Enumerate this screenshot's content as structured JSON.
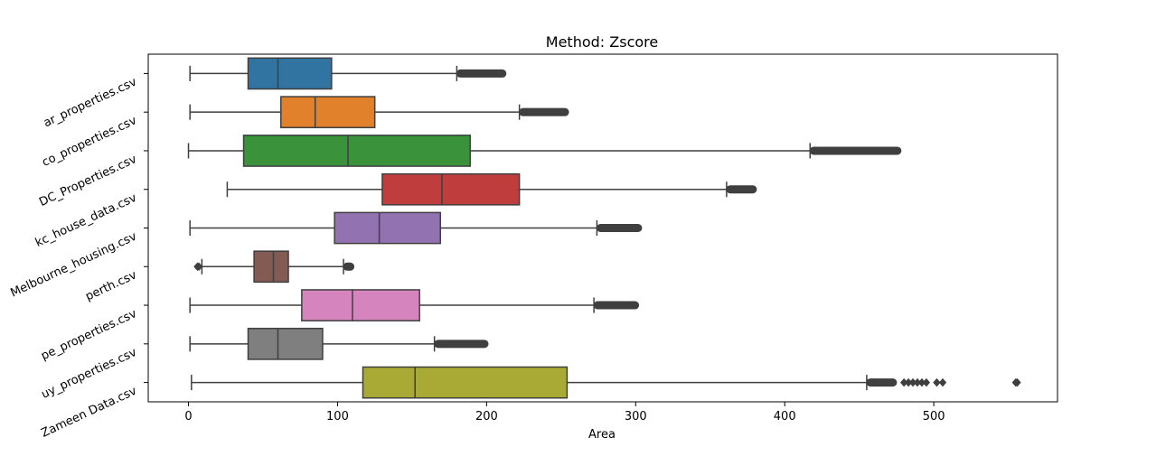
{
  "chart_data": {
    "type": "boxplot",
    "orientation": "horizontal",
    "title": "Method: Zscore",
    "xlabel": "Area",
    "ylabel": "",
    "xlim": [
      -27,
      583
    ],
    "xticks": [
      0,
      100,
      200,
      300,
      400,
      500
    ],
    "xtick_labels": [
      "0",
      "100",
      "200",
      "300",
      "400",
      "500"
    ],
    "grid": false,
    "legend": "none",
    "series": [
      {
        "label": "ar_properties.csv",
        "color": "#3274a1",
        "whisker_low": 1,
        "q1": 40,
        "median": 60,
        "q3": 96,
        "whisker_high": 180,
        "outlier_range": [
          180,
          213
        ],
        "outliers": []
      },
      {
        "label": "co_properties.csv",
        "color": "#e1812c",
        "whisker_low": 1,
        "q1": 62,
        "median": 85,
        "q3": 125,
        "whisker_high": 222,
        "outlier_range": [
          222,
          255
        ],
        "outliers": []
      },
      {
        "label": "DC_Properties.csv",
        "color": "#3a923a",
        "whisker_low": 0,
        "q1": 37,
        "median": 107,
        "q3": 189,
        "whisker_high": 417,
        "outlier_range": [
          417,
          478
        ],
        "outliers": []
      },
      {
        "label": "kc_house_data.csv",
        "color": "#c03d3e",
        "whisker_low": 26,
        "q1": 130,
        "median": 170,
        "q3": 222,
        "whisker_high": 361,
        "outlier_range": [
          361,
          381
        ],
        "outliers": []
      },
      {
        "label": "Melbourne_housing.csv",
        "color": "#9372b2",
        "whisker_low": 1,
        "q1": 98,
        "median": 128,
        "q3": 169,
        "whisker_high": 274,
        "outlier_range": [
          274,
          304
        ],
        "outliers": []
      },
      {
        "label": "perth.csv",
        "color": "#845b53",
        "whisker_low": 9,
        "q1": 44,
        "median": 57,
        "q3": 67,
        "whisker_high": 104,
        "outlier_range": [
          104,
          111
        ],
        "outliers": [
          6,
          7
        ]
      },
      {
        "label": "pe_properties.csv",
        "color": "#d684bd",
        "whisker_low": 1,
        "q1": 76,
        "median": 110,
        "q3": 155,
        "whisker_high": 272,
        "outlier_range": [
          272,
          302
        ],
        "outliers": []
      },
      {
        "label": "uy_properties.csv",
        "color": "#7f7f7f",
        "whisker_low": 1,
        "q1": 40,
        "median": 60,
        "q3": 90,
        "whisker_high": 165,
        "outlier_range": [
          165,
          201
        ],
        "outliers": []
      },
      {
        "label": "Zameen Data.csv",
        "color": "#a9aa35",
        "whisker_low": 2,
        "q1": 117,
        "median": 152,
        "q3": 254,
        "whisker_high": 455,
        "outlier_range": [
          455,
          475
        ],
        "outliers": [
          480,
          483,
          486,
          489,
          492,
          495,
          502,
          506,
          555,
          556
        ]
      }
    ]
  }
}
